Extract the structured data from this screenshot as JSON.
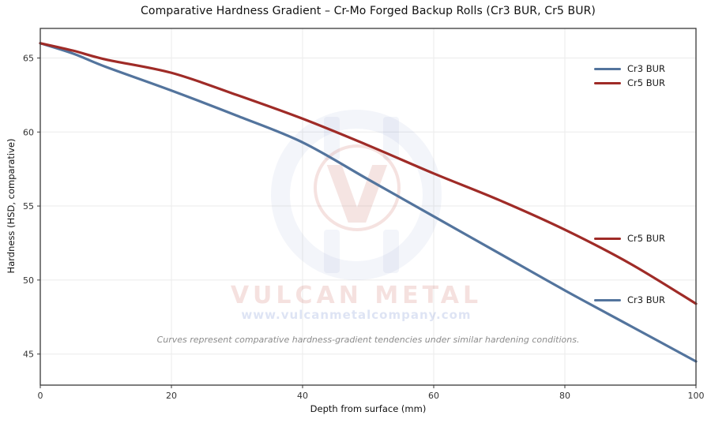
{
  "chart_data": {
    "type": "line",
    "title": "Comparative Hardness Gradient – Cr-Mo Forged Backup Rolls (Cr3 BUR, Cr5 BUR)",
    "xlabel": "Depth from surface (mm)",
    "ylabel": "Hardness (HSD, comparative)",
    "xlim": [
      0,
      100
    ],
    "ylim": [
      42.9,
      67.0
    ],
    "x_ticks": [
      0,
      20,
      40,
      60,
      80,
      100
    ],
    "y_ticks": [
      45,
      50,
      55,
      60,
      65
    ],
    "grid": true,
    "legend_position": "upper right",
    "x": [
      0,
      5,
      10,
      20,
      30,
      40,
      50,
      60,
      70,
      80,
      90,
      100
    ],
    "series": [
      {
        "name": "Cr3 BUR",
        "color": "#53749d",
        "values": [
          66.0,
          65.3,
          64.4,
          62.8,
          61.1,
          59.3,
          56.8,
          54.3,
          51.8,
          49.3,
          46.9,
          44.5
        ]
      },
      {
        "name": "Cr5 BUR",
        "color": "#9f2b27",
        "values": [
          66.0,
          65.5,
          64.9,
          64.0,
          62.5,
          60.9,
          59.1,
          57.2,
          55.4,
          53.4,
          51.1,
          48.4
        ]
      }
    ],
    "annotation": "Curves represent comparative hardness-gradient tendencies under similar hardening conditions."
  },
  "watermark": {
    "letter": "V",
    "brand": "VULCAN METAL",
    "url": "www.vulcanmetalcompany.com"
  },
  "colors": {
    "grid": "#ebebeb",
    "spine": "#383838",
    "tick_text": "#333333",
    "title_text": "#111111",
    "annotation_text": "#8c8c8c"
  }
}
